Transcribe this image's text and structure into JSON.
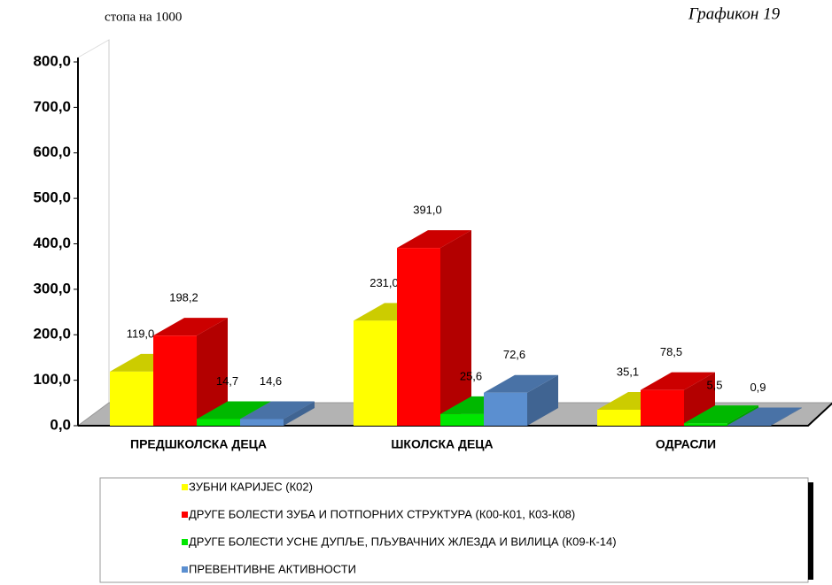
{
  "chart_data": {
    "type": "bar3d",
    "subtitle": "стопа на 1000",
    "title": "Графикон 19",
    "categories": [
      "ПРЕДШКОЛСКА ДЕЦА",
      "ШКОЛСКА ДЕЦА",
      "ОДРАСЛИ"
    ],
    "series": [
      {
        "name": "ЗУБНИ КАРИЈЕС (К02)",
        "color": "#ffff00",
        "values": [
          119.0,
          231.0,
          35.1
        ],
        "value_labels": [
          "119,0",
          "231,0",
          "35,1"
        ]
      },
      {
        "name": "ДРУГЕ БОЛЕСТИ ЗУБА И ПОТПОРНИХ СТРУКТУРА (К00-К01, К03-К08)",
        "color": "#ff0000",
        "values": [
          198.2,
          391.0,
          78.5
        ],
        "value_labels": [
          "198,2",
          "391,0",
          "78,5"
        ]
      },
      {
        "name": "ДРУГЕ БОЛЕСТИ УСНЕ ДУПЉЕ, ПЉУВАЧНИХ ЖЛЕЗДА И ВИЛИЦА (К09-К-14)",
        "color": "#00e600",
        "values": [
          14.7,
          25.6,
          5.5
        ],
        "value_labels": [
          "14,7",
          "25,6",
          "5,5"
        ]
      },
      {
        "name": "ПРЕВЕНТИВНЕ АКТИВНОСТИ",
        "color": "#5b8fd0",
        "values": [
          14.6,
          72.6,
          0.9
        ],
        "value_labels": [
          "14,6",
          "72,6",
          "0,9"
        ]
      }
    ],
    "ylim": [
      0,
      800
    ],
    "yticks": [
      {
        "value": 0,
        "label": "0,0"
      },
      {
        "value": 100,
        "label": "100,0"
      },
      {
        "value": 200,
        "label": "200,0"
      },
      {
        "value": 300,
        "label": "300,0"
      },
      {
        "value": 400,
        "label": "400,0"
      },
      {
        "value": 500,
        "label": "500,0"
      },
      {
        "value": 600,
        "label": "600,0"
      },
      {
        "value": 700,
        "label": "700,0"
      },
      {
        "value": 800,
        "label": "800,0"
      }
    ]
  }
}
